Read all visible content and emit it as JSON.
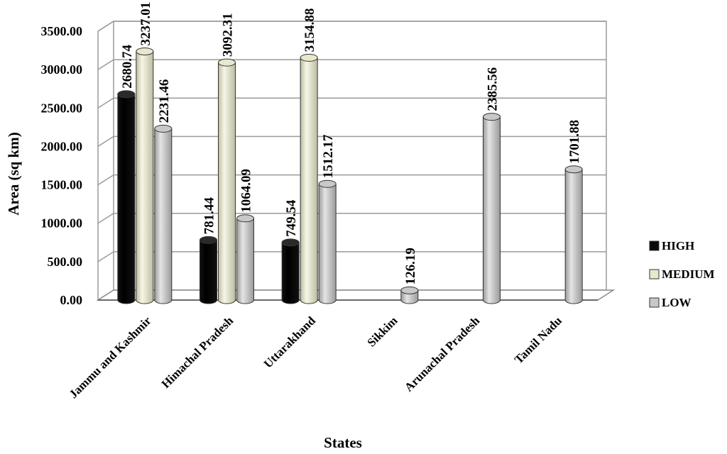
{
  "chart_data": {
    "type": "bar",
    "style": "3d-cylinder",
    "xlabel": "States",
    "ylabel": "Area (sq km)",
    "ylim": [
      0,
      3500
    ],
    "yticks": [
      "0.00",
      "500.00",
      "1000.00",
      "1500.00",
      "2000.00",
      "2500.00",
      "3000.00",
      "3500.00"
    ],
    "grid": true,
    "legend_position": "right",
    "categories": [
      "Jammu and Kashmir",
      "Himachal Pradesh",
      "Uttarakhand",
      "Sikkim",
      "Arunachal Pradesh",
      "Tamil Nadu"
    ],
    "series": [
      {
        "name": "HIGH",
        "color": "#0a0a0a",
        "values": [
          2680.74,
          781.44,
          749.54,
          null,
          null,
          null
        ],
        "labels": [
          "2680.74",
          "781.44",
          "749.54",
          "",
          "",
          ""
        ]
      },
      {
        "name": "MEDIUM",
        "color": "#e8e8cf",
        "values": [
          3237.01,
          3092.31,
          3154.88,
          null,
          null,
          null
        ],
        "labels": [
          "3237.01",
          "3092.31",
          "3154.88",
          "",
          "",
          ""
        ]
      },
      {
        "name": "LOW",
        "color": "#c8c8c8",
        "values": [
          2231.46,
          1064.09,
          1512.17,
          126.19,
          2385.56,
          1701.88
        ],
        "labels": [
          "2231.46",
          "1064.09",
          "1512.17",
          "126.19",
          "2385.56",
          "1701.88"
        ]
      }
    ]
  }
}
